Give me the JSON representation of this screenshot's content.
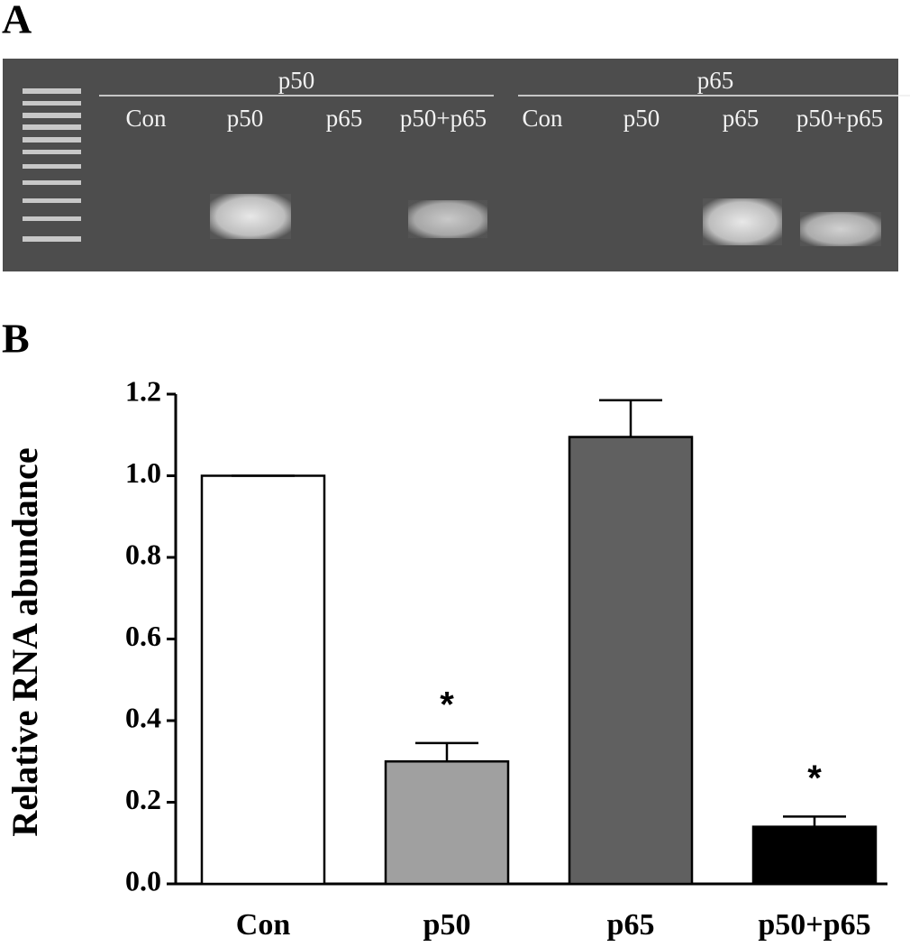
{
  "gel": {
    "panel_label": "A",
    "groups": [
      {
        "label": "p50",
        "lanes": [
          "Con",
          "p50",
          "p65",
          "p50+p65"
        ]
      },
      {
        "label": "p65",
        "lanes": [
          "Con",
          "p50",
          "p65",
          "p50+p65"
        ]
      }
    ]
  },
  "chart_data": {
    "type": "bar",
    "panel_label": "B",
    "y_label": "Relative RNA abundance",
    "categories": [
      "Con",
      "p50",
      "p65",
      "p50+p65"
    ],
    "values": [
      1.0,
      0.3,
      1.095,
      0.14
    ],
    "errors": [
      0,
      0.045,
      0.09,
      0.025
    ],
    "colors": [
      "#ffffff",
      "#a0a0a0",
      "#606060",
      "#000000"
    ],
    "annotations": [
      {
        "category": "p50",
        "text": "*"
      },
      {
        "category": "p50+p65",
        "text": "*"
      }
    ],
    "ylim": [
      0,
      1.2
    ],
    "yticks": [
      {
        "value": 0,
        "label": "0.0"
      },
      0.2,
      0.4,
      0.6,
      0.8,
      {
        "value": 1,
        "label": "1.0"
      },
      1.2
    ]
  }
}
